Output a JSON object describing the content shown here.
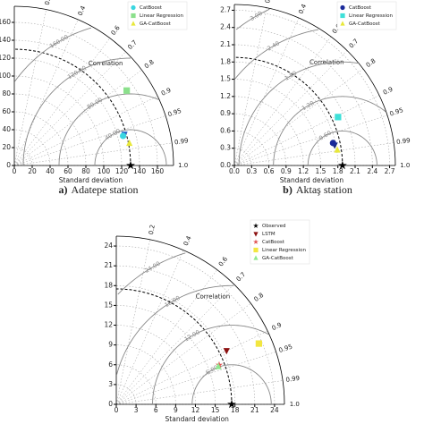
{
  "chart_data": [
    {
      "type": "taylor",
      "caption_letter": "a)",
      "caption": "Adatepe station",
      "xlabel": "Standard deviation",
      "corr_label": "Correlation",
      "rlim": [
        0,
        178
      ],
      "xticks": [
        0,
        20,
        40,
        60,
        80,
        100,
        120,
        140,
        160
      ],
      "yticks": [
        0,
        20,
        40,
        60,
        80,
        100,
        120,
        140,
        160
      ],
      "corr_ticks": [
        0.2,
        0.4,
        0.6,
        0.7,
        0.8,
        0.9,
        0.95,
        0.99,
        {
          "value": 1,
          "label": "1.0"
        }
      ],
      "rmsd_contours": [
        {
          "value": 40,
          "label": "40.00"
        },
        {
          "value": 80,
          "label": "80.00"
        },
        {
          "value": 120,
          "label": "120.00"
        },
        {
          "value": 160,
          "label": "160.00"
        }
      ],
      "legend": "upper right",
      "series": [
        {
          "marker": "star",
          "color": "#000000",
          "std": [
            130
          ],
          "corr": [
            1
          ],
          "reference": true
        },
        {
          "marker": "triangle-down",
          "color": "#2a63c9",
          "std": [
            128
          ],
          "corr": [
            0.962
          ]
        },
        {
          "name": "CatBoost",
          "marker": "circle",
          "color": "#3ad6e0",
          "std": [
            126
          ],
          "corr": [
            0.965
          ]
        },
        {
          "name": "Linear Regression",
          "marker": "square",
          "color": "#8be08c",
          "std": [
            151
          ],
          "corr": [
            0.832
          ]
        },
        {
          "name": "GA-CatBoost",
          "marker": "triangle",
          "color": "#e8e83a",
          "std": [
            131
          ],
          "corr": [
            0.982
          ]
        }
      ]
    },
    {
      "type": "taylor",
      "caption_letter": "b)",
      "caption": "Aktaş station",
      "xlabel": "Standard deviation",
      "corr_label": "Correlation",
      "rlim": [
        0,
        2.8
      ],
      "xticks": [
        {
          "value": 0,
          "label": "0.0"
        },
        0.3,
        0.6,
        0.9,
        1.2,
        1.5,
        1.8,
        2.1,
        2.4,
        2.7
      ],
      "yticks": [
        {
          "value": 0,
          "label": "0.0"
        },
        0.3,
        0.6,
        0.9,
        1.2,
        1.5,
        1.8,
        2.1,
        2.4,
        2.7
      ],
      "corr_ticks": [
        0.2,
        0.4,
        0.6,
        0.7,
        0.8,
        0.9,
        0.95,
        0.99,
        {
          "value": 1,
          "label": "1.0"
        }
      ],
      "rmsd_contours": [
        {
          "value": 0.6,
          "label": "0.60"
        },
        {
          "value": 1.2,
          "label": "1.20"
        },
        {
          "value": 1.8,
          "label": "1.80"
        },
        {
          "value": 2.4,
          "label": "2.40"
        },
        {
          "value": 3,
          "label": "3.00"
        }
      ],
      "legend": "upper right",
      "series": [
        {
          "marker": "star",
          "color": "#000000",
          "std": [
            1.88
          ],
          "corr": [
            1
          ],
          "reference": true
        },
        {
          "marker": "triangle-down",
          "color": "#1a2a7a",
          "std": [
            1.78
          ],
          "corr": [
            0.98
          ]
        },
        {
          "name": "CatBoost",
          "marker": "circle",
          "color": "#1a2a9a",
          "std": [
            1.76
          ],
          "corr": [
            0.975
          ]
        },
        {
          "name": "Linear Regression",
          "marker": "square",
          "color": "#3ee0d8",
          "std": [
            1.99
          ],
          "corr": [
            0.906
          ]
        },
        {
          "name": "GA-CatBoost",
          "marker": "triangle",
          "color": "#e8e83a",
          "std": [
            1.81
          ],
          "corr": [
            0.989
          ]
        }
      ]
    },
    {
      "type": "taylor",
      "xlabel": "Standard deviation",
      "corr_label": "Correlation",
      "rlim": [
        0,
        25.5
      ],
      "xticks": [
        0,
        3,
        6,
        9,
        12,
        15,
        18,
        21,
        24
      ],
      "yticks": [
        0,
        3,
        6,
        9,
        12,
        15,
        18,
        21,
        24
      ],
      "corr_ticks": [
        0.2,
        0.4,
        0.6,
        0.7,
        0.8,
        0.9,
        0.95,
        0.99,
        {
          "value": 1,
          "label": "1.0"
        }
      ],
      "rmsd_contours": [
        {
          "value": 6,
          "label": "6.00"
        },
        {
          "value": 12,
          "label": "12.00"
        },
        {
          "value": 18,
          "label": "18.00"
        },
        {
          "value": 24,
          "label": "24.00"
        }
      ],
      "legend": "upper right",
      "series": [
        {
          "name": "Observed",
          "marker": "star",
          "color": "#000000",
          "std": [
            17.5
          ],
          "corr": [
            1
          ],
          "reference": true
        },
        {
          "name": "LSTM",
          "marker": "triangle-down",
          "color": "#8b1010",
          "std": [
            18.6
          ],
          "corr": [
            0.899
          ]
        },
        {
          "name": "CatBoost",
          "marker": "star",
          "color": "#e05050",
          "std": [
            16.7
          ],
          "corr": [
            0.934
          ]
        },
        {
          "name": "Linear Regression",
          "marker": "square",
          "color": "#f2e640",
          "std": [
            23.5
          ],
          "corr": [
            0.92
          ]
        },
        {
          "name": "GA-CatBoost",
          "marker": "triangle",
          "color": "#90e890",
          "std": [
            16.5
          ],
          "corr": [
            0.938
          ]
        }
      ]
    }
  ]
}
